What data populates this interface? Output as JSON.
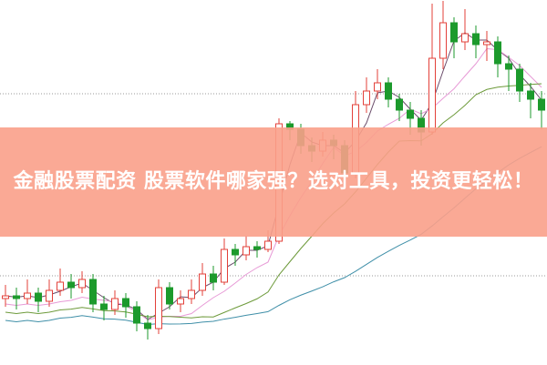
{
  "banner": {
    "title": "金融股票配资 股票软件哪家强？选对工具，投资更轻松！"
  },
  "chart_data": {
    "type": "candlestick",
    "title": "",
    "xlabel": "",
    "ylabel": "",
    "grid": "two dotted horizontal lines",
    "colors": {
      "up": "#e3403a",
      "down": "#1c9a2c",
      "ma": [
        "#6b4d6b",
        "#e79ad6",
        "#6d9a3a",
        "#3f8fa8"
      ]
    },
    "ohlc": [
      [
        24,
        25,
        29,
        21
      ],
      [
        25,
        24,
        28,
        20
      ],
      [
        24,
        26,
        31,
        22
      ],
      [
        26,
        23,
        28,
        19
      ],
      [
        23,
        27,
        31,
        21
      ],
      [
        27,
        30,
        35,
        25
      ],
      [
        30,
        28,
        33,
        24
      ],
      [
        28,
        31,
        34,
        26
      ],
      [
        31,
        22,
        33,
        19
      ],
      [
        22,
        20,
        25,
        16
      ],
      [
        20,
        24,
        27,
        18
      ],
      [
        24,
        21,
        26,
        17
      ],
      [
        21,
        15,
        23,
        12
      ],
      [
        15,
        13,
        18,
        9
      ],
      [
        13,
        28,
        31,
        11
      ],
      [
        28,
        22,
        30,
        20
      ],
      [
        22,
        24,
        27,
        19
      ],
      [
        24,
        27,
        31,
        22
      ],
      [
        27,
        33,
        37,
        25
      ],
      [
        33,
        30,
        36,
        27
      ],
      [
        30,
        42,
        46,
        29
      ],
      [
        42,
        40,
        44,
        36
      ],
      [
        40,
        43,
        47,
        38
      ],
      [
        43,
        42,
        45,
        39
      ],
      [
        42,
        45,
        49,
        41
      ],
      [
        45,
        88,
        90,
        44
      ],
      [
        88,
        86,
        89,
        82
      ],
      [
        86,
        80,
        88,
        77
      ],
      [
        80,
        78,
        83,
        74
      ],
      [
        78,
        82,
        85,
        76
      ],
      [
        82,
        80,
        84,
        75
      ],
      [
        80,
        70,
        82,
        64
      ],
      [
        70,
        95,
        100,
        68
      ],
      [
        95,
        100,
        105,
        92
      ],
      [
        100,
        103,
        108,
        97
      ],
      [
        103,
        97,
        105,
        94
      ],
      [
        97,
        93,
        99,
        89
      ],
      [
        93,
        90,
        96,
        84
      ],
      [
        90,
        85,
        93,
        80
      ],
      [
        85,
        112,
        132,
        84
      ],
      [
        112,
        125,
        133,
        108
      ],
      [
        125,
        118,
        127,
        112
      ],
      [
        118,
        121,
        130,
        115
      ],
      [
        121,
        117,
        124,
        112
      ],
      [
        117,
        118,
        122,
        111
      ],
      [
        118,
        110,
        120,
        105
      ],
      [
        110,
        108,
        113,
        100
      ],
      [
        108,
        100,
        110,
        96
      ],
      [
        100,
        97,
        103,
        90
      ],
      [
        97,
        93,
        100,
        86
      ]
    ]
  }
}
